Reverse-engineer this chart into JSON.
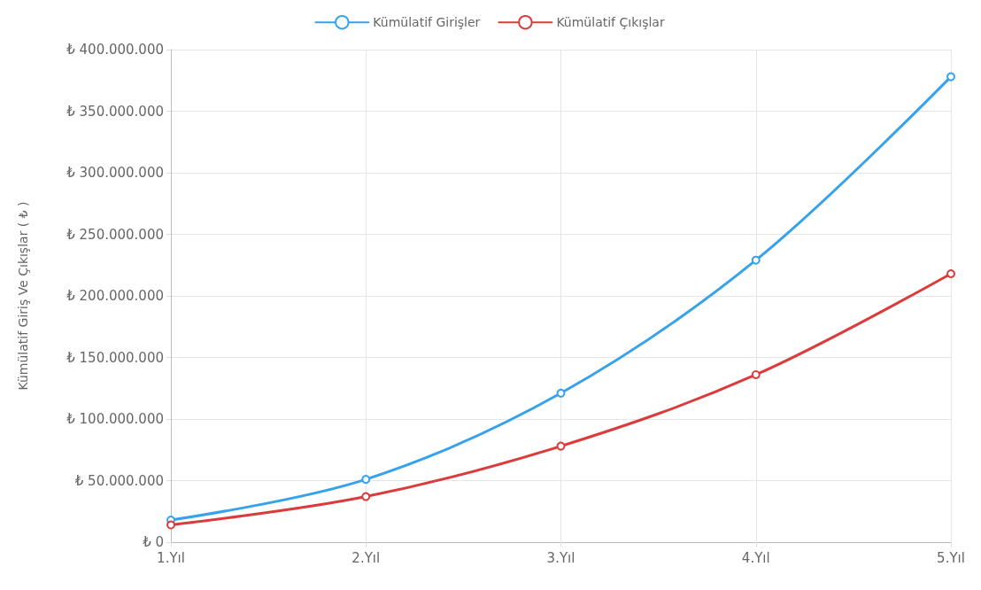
{
  "chart_data": {
    "type": "line",
    "ylabel": "Kümülatif Giriş Ve Çıkışlar ( ₺ )",
    "categories": [
      "1.Yıl",
      "2.Yıl",
      "3.Yıl",
      "4.Yıl",
      "5.Yıl"
    ],
    "series": [
      {
        "name": "Kümülatif Girişler",
        "color": "#36a2eb",
        "values": [
          18000000,
          51000000,
          121000000,
          229000000,
          378000000
        ]
      },
      {
        "name": "Kümülatif Çıkışlar",
        "color": "#dc3b3b",
        "values": [
          14000000,
          37000000,
          78000000,
          136000000,
          218000000
        ]
      }
    ],
    "ylim": [
      0,
      400000000
    ],
    "yticks": [
      {
        "value": 0,
        "label": "₺ 0"
      },
      {
        "value": 50000000,
        "label": "₺ 50.000.000"
      },
      {
        "value": 100000000,
        "label": "₺ 100.000.000"
      },
      {
        "value": 150000000,
        "label": "₺ 150.000.000"
      },
      {
        "value": 200000000,
        "label": "₺ 200.000.000"
      },
      {
        "value": 250000000,
        "label": "₺ 250.000.000"
      },
      {
        "value": 300000000,
        "label": "₺ 300.000.000"
      },
      {
        "value": 350000000,
        "label": "₺ 350.000.000"
      },
      {
        "value": 400000000,
        "label": "₺ 400.000.000"
      }
    ],
    "grid": true,
    "legend": "top",
    "marker": "circle",
    "line_style": "solid"
  }
}
